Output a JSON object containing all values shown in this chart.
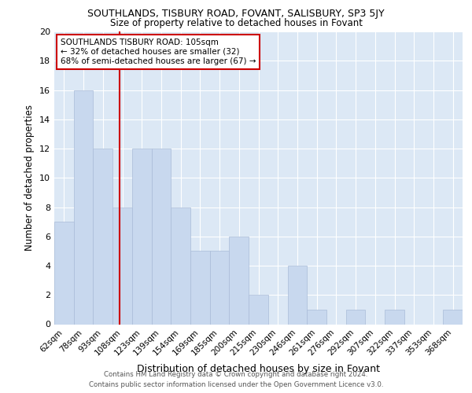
{
  "title1": "SOUTHLANDS, TISBURY ROAD, FOVANT, SALISBURY, SP3 5JY",
  "title2": "Size of property relative to detached houses in Fovant",
  "xlabel": "Distribution of detached houses by size in Fovant",
  "ylabel": "Number of detached properties",
  "categories": [
    "62sqm",
    "78sqm",
    "93sqm",
    "108sqm",
    "123sqm",
    "139sqm",
    "154sqm",
    "169sqm",
    "185sqm",
    "200sqm",
    "215sqm",
    "230sqm",
    "246sqm",
    "261sqm",
    "276sqm",
    "292sqm",
    "307sqm",
    "322sqm",
    "337sqm",
    "353sqm",
    "368sqm"
  ],
  "values": [
    7,
    16,
    12,
    8,
    12,
    12,
    8,
    5,
    5,
    6,
    2,
    0,
    4,
    1,
    0,
    1,
    0,
    1,
    0,
    0,
    1
  ],
  "bar_color": "#c8d8ee",
  "bar_edgecolor": "#aabcd8",
  "redline_x": 2.85,
  "annotation_line1": "SOUTHLANDS TISBURY ROAD: 105sqm",
  "annotation_line2": "← 32% of detached houses are smaller (32)",
  "annotation_line3": "68% of semi-detached houses are larger (67) →",
  "annotation_box_facecolor": "#ffffff",
  "annotation_box_edgecolor": "#cc0000",
  "redline_color": "#cc0000",
  "ylim": [
    0,
    20
  ],
  "yticks": [
    0,
    2,
    4,
    6,
    8,
    10,
    12,
    14,
    16,
    18,
    20
  ],
  "footer1": "Contains HM Land Registry data © Crown copyright and database right 2024.",
  "footer2": "Contains public sector information licensed under the Open Government Licence v3.0.",
  "fig_bg_color": "#ffffff",
  "plot_bg_color": "#dce8f5"
}
